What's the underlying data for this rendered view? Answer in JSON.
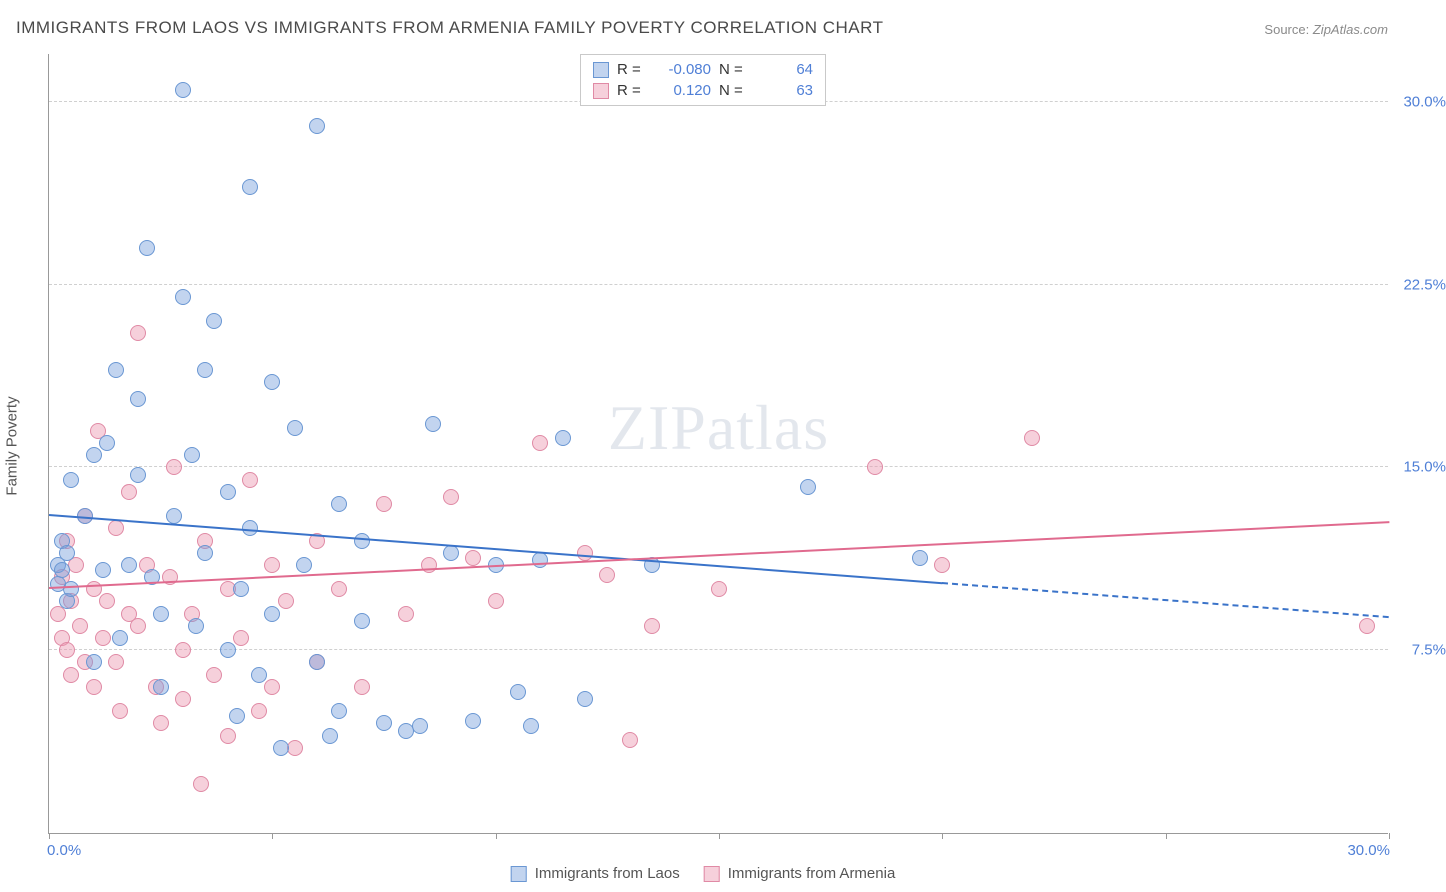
{
  "title": "IMMIGRANTS FROM LAOS VS IMMIGRANTS FROM ARMENIA FAMILY POVERTY CORRELATION CHART",
  "source_label": "Source:",
  "source_value": "ZipAtlas.com",
  "ylabel": "Family Poverty",
  "watermark": {
    "bold": "ZIP",
    "thin": "atlas"
  },
  "axes": {
    "xlim": [
      0,
      30
    ],
    "ylim": [
      0,
      32
    ],
    "ytick_values": [
      7.5,
      15.0,
      22.5,
      30.0
    ],
    "ytick_labels": [
      "7.5%",
      "15.0%",
      "22.5%",
      "30.0%"
    ],
    "xtick_values": [
      0,
      5,
      10,
      15,
      20,
      25,
      30
    ],
    "x_min_label": "0.0%",
    "x_max_label": "30.0%",
    "grid_color": "#d0d0d0",
    "axis_color": "#999999",
    "tick_label_color": "#4f7fd6",
    "background_color": "#ffffff"
  },
  "series": {
    "laos": {
      "label": "Immigrants from Laos",
      "fill": "rgba(120,160,220,0.45)",
      "stroke": "#6a97d3",
      "line_color": "#3a73c9",
      "R": "-0.080",
      "N": "64",
      "regression": {
        "x0": 0,
        "y0": 13.0,
        "x1_solid": 20,
        "y1_solid": 10.2,
        "x1_dash": 30,
        "y1_dash": 8.8
      },
      "points": [
        [
          0.2,
          11.0
        ],
        [
          0.2,
          10.2
        ],
        [
          0.3,
          12.0
        ],
        [
          0.3,
          10.8
        ],
        [
          0.4,
          9.5
        ],
        [
          0.4,
          11.5
        ],
        [
          0.5,
          10.0
        ],
        [
          0.5,
          14.5
        ],
        [
          0.8,
          13.0
        ],
        [
          1.0,
          15.5
        ],
        [
          1.0,
          7.0
        ],
        [
          1.2,
          10.8
        ],
        [
          1.3,
          16.0
        ],
        [
          1.5,
          19.0
        ],
        [
          1.6,
          8.0
        ],
        [
          1.8,
          11.0
        ],
        [
          2.0,
          14.7
        ],
        [
          2.0,
          17.8
        ],
        [
          2.2,
          24.0
        ],
        [
          2.3,
          10.5
        ],
        [
          2.5,
          9.0
        ],
        [
          2.5,
          6.0
        ],
        [
          2.8,
          13.0
        ],
        [
          3.0,
          30.5
        ],
        [
          3.0,
          22.0
        ],
        [
          3.2,
          15.5
        ],
        [
          3.3,
          8.5
        ],
        [
          3.5,
          19.0
        ],
        [
          3.5,
          11.5
        ],
        [
          3.7,
          21.0
        ],
        [
          4.0,
          7.5
        ],
        [
          4.0,
          14.0
        ],
        [
          4.2,
          4.8
        ],
        [
          4.3,
          10.0
        ],
        [
          4.5,
          26.5
        ],
        [
          4.5,
          12.5
        ],
        [
          4.7,
          6.5
        ],
        [
          5.0,
          18.5
        ],
        [
          5.0,
          9.0
        ],
        [
          5.2,
          3.5
        ],
        [
          5.5,
          16.6
        ],
        [
          5.7,
          11.0
        ],
        [
          6.0,
          29.0
        ],
        [
          6.0,
          7.0
        ],
        [
          6.3,
          4.0
        ],
        [
          6.5,
          13.5
        ],
        [
          6.5,
          5.0
        ],
        [
          7.0,
          12.0
        ],
        [
          7.0,
          8.7
        ],
        [
          7.5,
          4.5
        ],
        [
          8.0,
          4.2
        ],
        [
          8.3,
          4.4
        ],
        [
          8.6,
          16.8
        ],
        [
          9.0,
          11.5
        ],
        [
          9.5,
          4.6
        ],
        [
          10.0,
          11.0
        ],
        [
          10.5,
          5.8
        ],
        [
          10.8,
          4.4
        ],
        [
          11.0,
          11.2
        ],
        [
          11.5,
          16.2
        ],
        [
          12.0,
          5.5
        ],
        [
          13.5,
          11.0
        ],
        [
          17.0,
          14.2
        ],
        [
          19.5,
          11.3
        ]
      ]
    },
    "armenia": {
      "label": "Immigrants from Armenia",
      "fill": "rgba(235,150,175,0.45)",
      "stroke": "#e08aa5",
      "line_color": "#e06a8e",
      "R": "0.120",
      "N": "63",
      "regression": {
        "x0": 0,
        "y0": 10.0,
        "x1_solid": 30,
        "y1_solid": 12.7,
        "x1_dash": 30,
        "y1_dash": 12.7
      },
      "points": [
        [
          0.2,
          9.0
        ],
        [
          0.3,
          8.0
        ],
        [
          0.3,
          10.5
        ],
        [
          0.4,
          7.5
        ],
        [
          0.4,
          12.0
        ],
        [
          0.5,
          9.5
        ],
        [
          0.5,
          6.5
        ],
        [
          0.6,
          11.0
        ],
        [
          0.7,
          8.5
        ],
        [
          0.8,
          13.0
        ],
        [
          0.8,
          7.0
        ],
        [
          1.0,
          10.0
        ],
        [
          1.0,
          6.0
        ],
        [
          1.1,
          16.5
        ],
        [
          1.2,
          8.0
        ],
        [
          1.3,
          9.5
        ],
        [
          1.5,
          12.5
        ],
        [
          1.5,
          7.0
        ],
        [
          1.6,
          5.0
        ],
        [
          1.8,
          14.0
        ],
        [
          1.8,
          9.0
        ],
        [
          2.0,
          20.5
        ],
        [
          2.0,
          8.5
        ],
        [
          2.2,
          11.0
        ],
        [
          2.4,
          6.0
        ],
        [
          2.5,
          4.5
        ],
        [
          2.7,
          10.5
        ],
        [
          2.8,
          15.0
        ],
        [
          3.0,
          7.5
        ],
        [
          3.0,
          5.5
        ],
        [
          3.2,
          9.0
        ],
        [
          3.4,
          2.0
        ],
        [
          3.5,
          12.0
        ],
        [
          3.7,
          6.5
        ],
        [
          4.0,
          4.0
        ],
        [
          4.0,
          10.0
        ],
        [
          4.3,
          8.0
        ],
        [
          4.5,
          14.5
        ],
        [
          4.7,
          5.0
        ],
        [
          5.0,
          11.0
        ],
        [
          5.0,
          6.0
        ],
        [
          5.3,
          9.5
        ],
        [
          5.5,
          3.5
        ],
        [
          6.0,
          12.0
        ],
        [
          6.0,
          7.0
        ],
        [
          6.5,
          10.0
        ],
        [
          7.0,
          6.0
        ],
        [
          7.5,
          13.5
        ],
        [
          8.0,
          9.0
        ],
        [
          8.5,
          11.0
        ],
        [
          9.0,
          13.8
        ],
        [
          9.5,
          11.3
        ],
        [
          10.0,
          9.5
        ],
        [
          11.0,
          16.0
        ],
        [
          12.0,
          11.5
        ],
        [
          12.5,
          10.6
        ],
        [
          13.0,
          3.8
        ],
        [
          13.5,
          8.5
        ],
        [
          15.0,
          10.0
        ],
        [
          18.5,
          15.0
        ],
        [
          20.0,
          11.0
        ],
        [
          22.0,
          16.2
        ],
        [
          29.5,
          8.5
        ]
      ]
    }
  },
  "legend_top": {
    "r_label": "R =",
    "n_label": "N ="
  }
}
